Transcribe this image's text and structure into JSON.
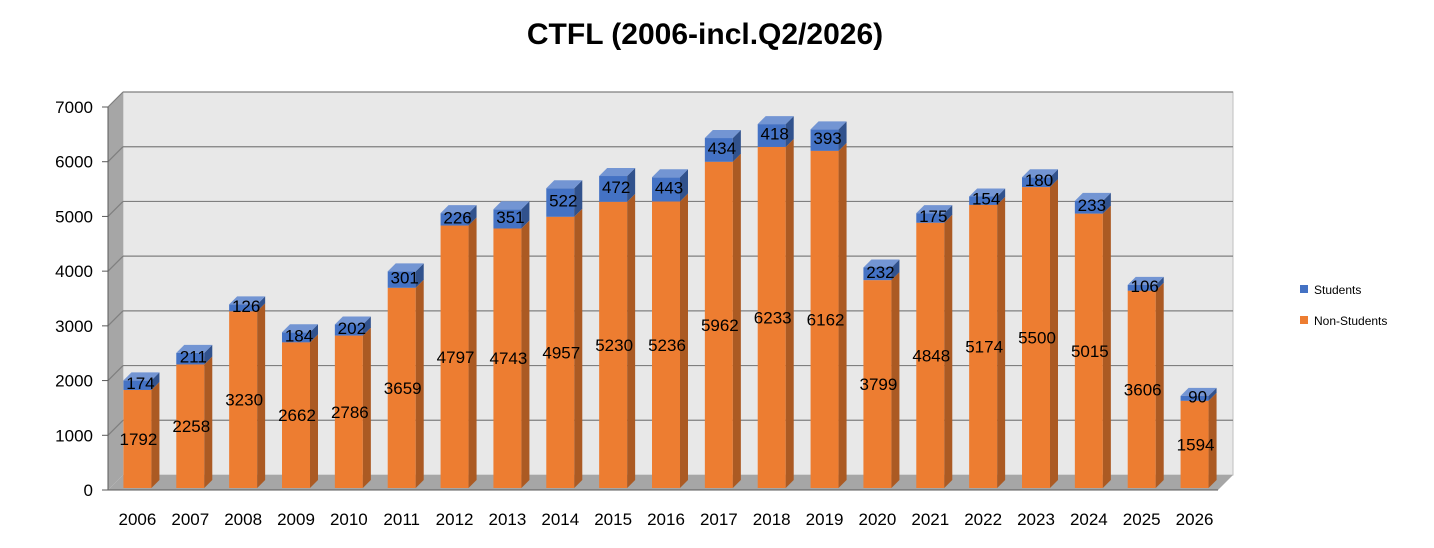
{
  "chart_data": {
    "type": "bar",
    "stacked": true,
    "three_d": true,
    "title": "CTFL (2006-incl.Q2/2026)",
    "categories": [
      "2006",
      "2007",
      "2008",
      "2009",
      "2010",
      "2011",
      "2012",
      "2013",
      "2014",
      "2015",
      "2016",
      "2017",
      "2018",
      "2019",
      "2020",
      "2021",
      "2022",
      "2023",
      "2024",
      "2025",
      "2026"
    ],
    "series": [
      {
        "name": "Non-Students",
        "color": "#ed7d31",
        "values": [
          1792,
          2258,
          3230,
          2662,
          2786,
          3659,
          4797,
          4743,
          4957,
          5230,
          5236,
          5962,
          6233,
          6162,
          3799,
          4848,
          5174,
          5500,
          5015,
          3606,
          1594
        ]
      },
      {
        "name": "Students",
        "color": "#4472c4",
        "values": [
          174,
          211,
          126,
          184,
          202,
          301,
          226,
          351,
          522,
          472,
          443,
          434,
          418,
          393,
          232,
          175,
          154,
          180,
          233,
          106,
          90
        ]
      }
    ],
    "ylim": [
      0,
      7000
    ],
    "yticks": [
      0,
      1000,
      2000,
      3000,
      4000,
      5000,
      6000,
      7000
    ],
    "grid": true,
    "legend_position": "right",
    "legend_order": [
      "Students",
      "Non-Students"
    ]
  }
}
